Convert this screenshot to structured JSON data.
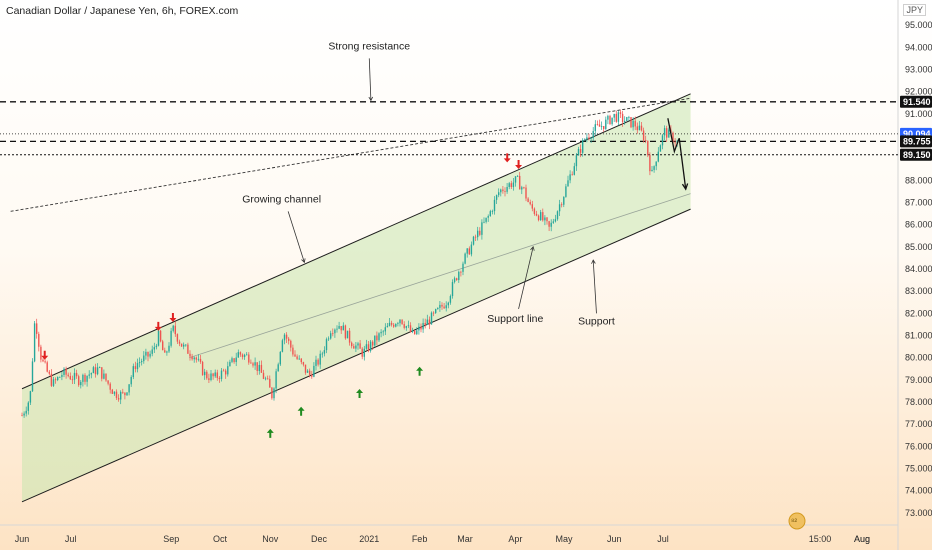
{
  "header": {
    "title": "Canadian Dollar / Japanese Yen, 6h, FOREX.com",
    "currency": "JPY",
    "logo_text": "⁸²"
  },
  "chart_data": {
    "type": "candlestick",
    "title": "Canadian Dollar / Japanese Yen, 6h, FOREX.com",
    "x_ticks": [
      "Jun",
      "Jul",
      "Aug",
      "Sep",
      "Oct",
      "Nov",
      "Dec",
      "2021",
      "Feb",
      "Mar",
      "Apr",
      "May",
      "Jun",
      "Jul",
      "15:00",
      "Aug"
    ],
    "y_ticks": [
      73.0,
      74.0,
      75.0,
      76.0,
      77.0,
      78.0,
      79.0,
      80.0,
      81.0,
      82.0,
      83.0,
      84.0,
      85.0,
      86.0,
      87.0,
      88.0,
      89.0,
      90.0,
      91.0,
      92.0,
      93.0,
      94.0,
      95.0
    ],
    "ylim": [
      72.5,
      95.5
    ],
    "price_series": [
      [
        "2020-06-01",
        77.4
      ],
      [
        "2020-06-06",
        78.2
      ],
      [
        "2020-06-09",
        81.8
      ],
      [
        "2020-06-13",
        79.9
      ],
      [
        "2020-06-20",
        78.8
      ],
      [
        "2020-06-26",
        79.3
      ],
      [
        "2020-07-06",
        79.0
      ],
      [
        "2020-07-18",
        79.5
      ],
      [
        "2020-07-28",
        78.4
      ],
      [
        "2020-08-03",
        78.3
      ],
      [
        "2020-08-10",
        79.7
      ],
      [
        "2020-08-20",
        80.2
      ],
      [
        "2020-08-24",
        81.0
      ],
      [
        "2020-08-28",
        80.0
      ],
      [
        "2020-09-02",
        81.3
      ],
      [
        "2020-09-08",
        80.5
      ],
      [
        "2020-09-15",
        80.1
      ],
      [
        "2020-09-22",
        79.2
      ],
      [
        "2020-09-28",
        79.1
      ],
      [
        "2020-10-06",
        79.5
      ],
      [
        "2020-10-12",
        80.2
      ],
      [
        "2020-10-20",
        80.0
      ],
      [
        "2020-10-30",
        78.9
      ],
      [
        "2020-11-02",
        78.3
      ],
      [
        "2020-11-09",
        81.2
      ],
      [
        "2020-11-16",
        80.1
      ],
      [
        "2020-11-25",
        79.2
      ],
      [
        "2020-12-02",
        80.0
      ],
      [
        "2020-12-08",
        81.3
      ],
      [
        "2020-12-14",
        81.5
      ],
      [
        "2020-12-20",
        80.8
      ],
      [
        "2020-12-28",
        80.2
      ],
      [
        "2021-01-06",
        80.9
      ],
      [
        "2021-01-13",
        81.4
      ],
      [
        "2021-01-20",
        81.8
      ],
      [
        "2021-01-28",
        81.0
      ],
      [
        "2021-02-04",
        81.5
      ],
      [
        "2021-02-10",
        81.9
      ],
      [
        "2021-02-18",
        82.6
      ],
      [
        "2021-02-25",
        83.9
      ],
      [
        "2021-03-01",
        84.5
      ],
      [
        "2021-03-08",
        85.5
      ],
      [
        "2021-03-15",
        86.3
      ],
      [
        "2021-03-22",
        87.5
      ],
      [
        "2021-03-28",
        87.8
      ],
      [
        "2021-04-02",
        88.0
      ],
      [
        "2021-04-06",
        87.6
      ],
      [
        "2021-04-10",
        86.8
      ],
      [
        "2021-04-16",
        86.4
      ],
      [
        "2021-04-22",
        85.8
      ],
      [
        "2021-04-26",
        86.5
      ],
      [
        "2021-05-01",
        87.4
      ],
      [
        "2021-05-08",
        88.9
      ],
      [
        "2021-05-14",
        89.9
      ],
      [
        "2021-05-20",
        90.3
      ],
      [
        "2021-05-25",
        90.5
      ],
      [
        "2021-06-01",
        90.9
      ],
      [
        "2021-06-08",
        90.7
      ],
      [
        "2021-06-14",
        90.5
      ],
      [
        "2021-06-20",
        89.9
      ],
      [
        "2021-06-24",
        88.2
      ],
      [
        "2021-06-28",
        89.4
      ],
      [
        "2021-07-02",
        90.2
      ],
      [
        "2021-07-07",
        89.9
      ],
      [
        "2021-07-10",
        89.7
      ]
    ],
    "price_levels": [
      {
        "value": 91.54,
        "label": "91.540",
        "style": "dashed"
      },
      {
        "value": 90.094,
        "label": "90.094",
        "style": "current"
      },
      {
        "value": 89.755,
        "label": "89.755",
        "style": "dashed"
      },
      {
        "value": 89.15,
        "label": "89.150",
        "style": "dotted"
      }
    ],
    "channel": {
      "upper": [
        [
          "2020-06-01",
          78.6
        ],
        [
          "2021-07-18",
          91.9
        ]
      ],
      "lower": [
        [
          "2020-06-01",
          73.5
        ],
        [
          "2021-07-18",
          86.7
        ]
      ],
      "mid": [
        [
          "2020-09-12",
          80.0
        ],
        [
          "2021-07-18",
          87.4
        ]
      ]
    },
    "resistance_trend": [
      [
        "2020-05-25",
        86.6
      ],
      [
        "2021-07-18",
        91.7
      ]
    ],
    "down_arrows": [
      [
        "2020-06-15",
        80.0
      ],
      [
        "2020-08-24",
        81.3
      ],
      [
        "2020-09-02",
        81.7
      ],
      [
        "2021-03-27",
        88.9
      ],
      [
        "2021-04-03",
        88.6
      ]
    ],
    "up_arrows": [
      [
        "2020-11-01",
        76.7
      ],
      [
        "2020-11-20",
        77.7
      ],
      [
        "2020-12-26",
        78.5
      ],
      [
        "2021-02-01",
        79.5
      ]
    ],
    "forecast_path": [
      [
        "2021-07-04",
        90.8
      ],
      [
        "2021-07-08",
        89.3
      ],
      [
        "2021-07-11",
        89.9
      ],
      [
        "2021-07-15",
        87.6
      ]
    ],
    "annotations": [
      {
        "text": "Strong resistance",
        "x": "2021-01-01",
        "y": 93.9
      },
      {
        "text": "Growing channel",
        "x": "2020-11-08",
        "y": 87.0
      },
      {
        "text": "Support line",
        "x": "2021-04-01",
        "y": 81.6
      },
      {
        "text": "Support",
        "x": "2021-05-21",
        "y": 81.5
      }
    ],
    "colors": {
      "up": "#26a69a",
      "down": "#ef5350",
      "channel_fill": "rgba(200,230,175,0.55)",
      "level_line": "#111111",
      "current_price_bg": "#2962ff",
      "arrow_down": "#e02020",
      "arrow_up": "#1f8a1f"
    }
  }
}
